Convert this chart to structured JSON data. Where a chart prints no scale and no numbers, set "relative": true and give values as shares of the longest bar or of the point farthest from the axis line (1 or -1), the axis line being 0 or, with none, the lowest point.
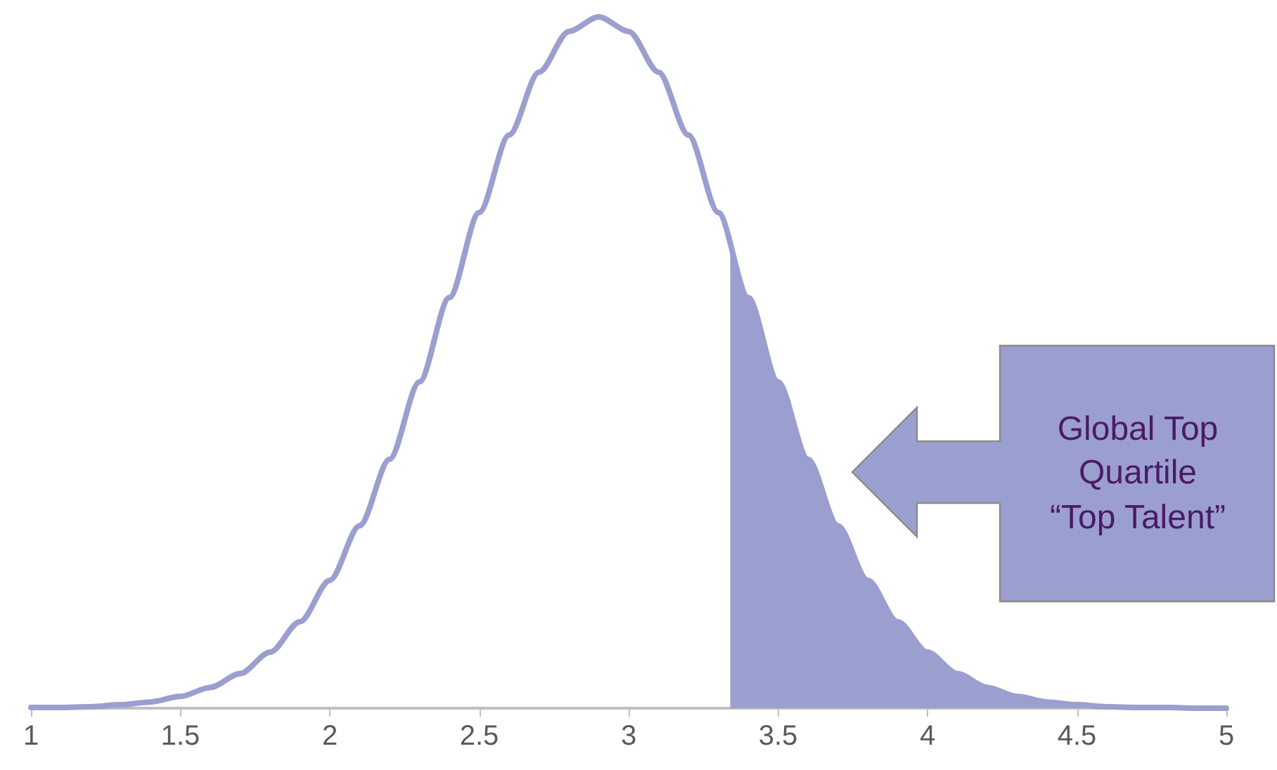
{
  "chart_data": {
    "type": "line",
    "relative": true,
    "xlim": [
      1,
      5
    ],
    "xticks": [
      1,
      1.5,
      2,
      2.5,
      3,
      3.5,
      4,
      4.5,
      5
    ],
    "marker": "none",
    "line_style": "solid",
    "annotations": [
      "Global Top Quartile\n“Top Talent”"
    ],
    "series": [
      {
        "color": "#9b9fcf",
        "x": [
          1,
          1.1,
          1.2,
          1.3,
          1.4,
          1.5,
          1.6,
          1.7,
          1.8,
          1.9,
          2,
          2.1,
          2.2,
          2.3,
          2.4,
          2.5,
          2.6,
          2.7,
          2.8,
          2.9,
          3,
          3.1,
          3.2,
          3.3,
          3.4,
          3.5,
          3.6,
          3.7,
          3.8,
          3.9,
          4,
          4.1,
          4.2,
          4.3,
          4.4,
          4.5,
          4.6,
          4.7,
          4.8,
          4.9,
          5
        ],
        "values": [
          0.001,
          0.001,
          0.002,
          0.005,
          0.009,
          0.017,
          0.03,
          0.05,
          0.081,
          0.125,
          0.185,
          0.264,
          0.36,
          0.472,
          0.594,
          0.717,
          0.829,
          0.92,
          0.979,
          1,
          0.979,
          0.92,
          0.829,
          0.717,
          0.594,
          0.472,
          0.36,
          0.264,
          0.185,
          0.125,
          0.081,
          0.05,
          0.03,
          0.017,
          0.009,
          0.005,
          0.002,
          0.001,
          0.001,
          0,
          0
        ]
      },
      {
        "type": "area",
        "color": "#9b9fcf",
        "x": [
          3.34,
          3.4,
          3.5,
          3.6,
          3.7,
          3.8,
          3.9,
          4,
          4.1,
          4.2,
          4.3,
          4.4,
          4.5,
          4.6,
          4.7,
          4.8,
          4.9,
          5
        ],
        "values": [
          0.668,
          0.594,
          0.472,
          0.36,
          0.264,
          0.185,
          0.125,
          0.081,
          0.05,
          0.03,
          0.017,
          0.009,
          0.005,
          0.002,
          0.001,
          0.001,
          0,
          0
        ]
      }
    ]
  }
}
